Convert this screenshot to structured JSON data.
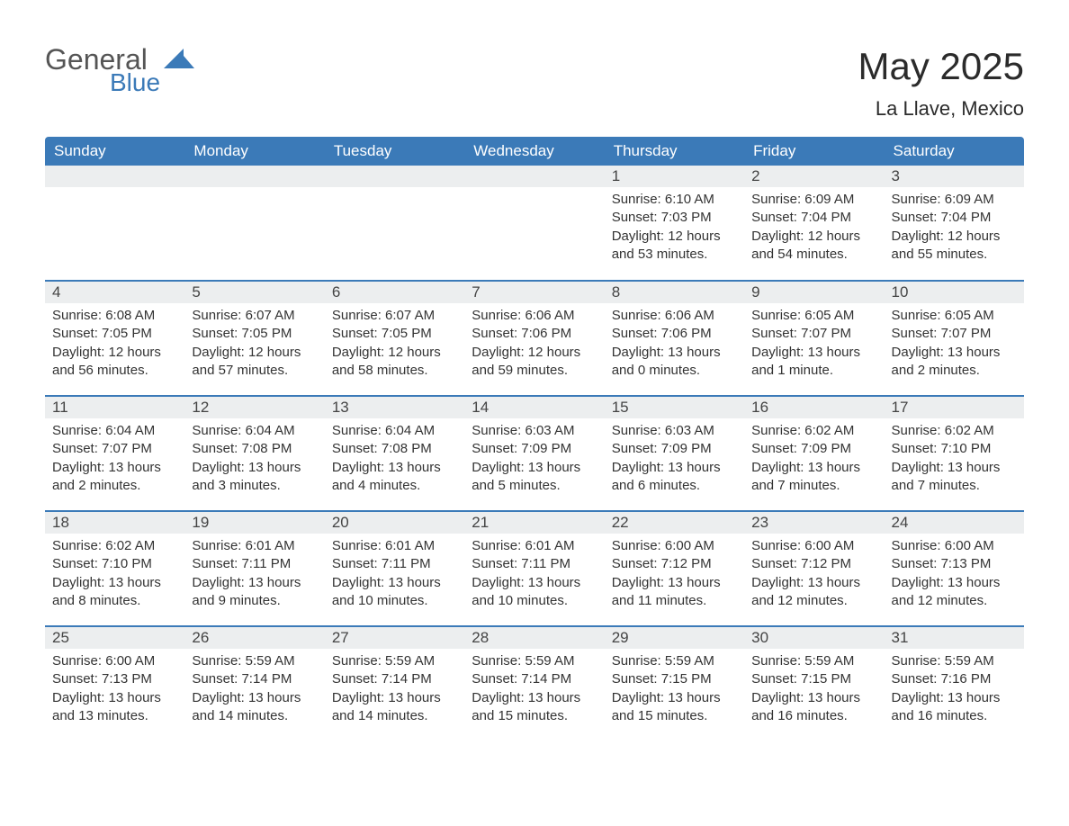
{
  "logo": {
    "text_primary": "General",
    "text_secondary": "Blue",
    "mark_color": "#3b7ab8",
    "primary_color": "#555555",
    "secondary_color": "#3b7ab8"
  },
  "title": "May 2025",
  "location": "La Llave, Mexico",
  "theme": {
    "header_bg": "#3b7ab8",
    "header_text": "#ffffff",
    "day_number_bg": "#eceeef",
    "divider_color": "#3b7ab8",
    "body_text_color": "#333333",
    "page_bg": "#ffffff"
  },
  "weekdays": [
    "Sunday",
    "Monday",
    "Tuesday",
    "Wednesday",
    "Thursday",
    "Friday",
    "Saturday"
  ],
  "weeks": [
    [
      null,
      null,
      null,
      null,
      {
        "day": "1",
        "sunrise": "6:10 AM",
        "sunset": "7:03 PM",
        "daylight": "12 hours and 53 minutes."
      },
      {
        "day": "2",
        "sunrise": "6:09 AM",
        "sunset": "7:04 PM",
        "daylight": "12 hours and 54 minutes."
      },
      {
        "day": "3",
        "sunrise": "6:09 AM",
        "sunset": "7:04 PM",
        "daylight": "12 hours and 55 minutes."
      }
    ],
    [
      {
        "day": "4",
        "sunrise": "6:08 AM",
        "sunset": "7:05 PM",
        "daylight": "12 hours and 56 minutes."
      },
      {
        "day": "5",
        "sunrise": "6:07 AM",
        "sunset": "7:05 PM",
        "daylight": "12 hours and 57 minutes."
      },
      {
        "day": "6",
        "sunrise": "6:07 AM",
        "sunset": "7:05 PM",
        "daylight": "12 hours and 58 minutes."
      },
      {
        "day": "7",
        "sunrise": "6:06 AM",
        "sunset": "7:06 PM",
        "daylight": "12 hours and 59 minutes."
      },
      {
        "day": "8",
        "sunrise": "6:06 AM",
        "sunset": "7:06 PM",
        "daylight": "13 hours and 0 minutes."
      },
      {
        "day": "9",
        "sunrise": "6:05 AM",
        "sunset": "7:07 PM",
        "daylight": "13 hours and 1 minute."
      },
      {
        "day": "10",
        "sunrise": "6:05 AM",
        "sunset": "7:07 PM",
        "daylight": "13 hours and 2 minutes."
      }
    ],
    [
      {
        "day": "11",
        "sunrise": "6:04 AM",
        "sunset": "7:07 PM",
        "daylight": "13 hours and 2 minutes."
      },
      {
        "day": "12",
        "sunrise": "6:04 AM",
        "sunset": "7:08 PM",
        "daylight": "13 hours and 3 minutes."
      },
      {
        "day": "13",
        "sunrise": "6:04 AM",
        "sunset": "7:08 PM",
        "daylight": "13 hours and 4 minutes."
      },
      {
        "day": "14",
        "sunrise": "6:03 AM",
        "sunset": "7:09 PM",
        "daylight": "13 hours and 5 minutes."
      },
      {
        "day": "15",
        "sunrise": "6:03 AM",
        "sunset": "7:09 PM",
        "daylight": "13 hours and 6 minutes."
      },
      {
        "day": "16",
        "sunrise": "6:02 AM",
        "sunset": "7:09 PM",
        "daylight": "13 hours and 7 minutes."
      },
      {
        "day": "17",
        "sunrise": "6:02 AM",
        "sunset": "7:10 PM",
        "daylight": "13 hours and 7 minutes."
      }
    ],
    [
      {
        "day": "18",
        "sunrise": "6:02 AM",
        "sunset": "7:10 PM",
        "daylight": "13 hours and 8 minutes."
      },
      {
        "day": "19",
        "sunrise": "6:01 AM",
        "sunset": "7:11 PM",
        "daylight": "13 hours and 9 minutes."
      },
      {
        "day": "20",
        "sunrise": "6:01 AM",
        "sunset": "7:11 PM",
        "daylight": "13 hours and 10 minutes."
      },
      {
        "day": "21",
        "sunrise": "6:01 AM",
        "sunset": "7:11 PM",
        "daylight": "13 hours and 10 minutes."
      },
      {
        "day": "22",
        "sunrise": "6:00 AM",
        "sunset": "7:12 PM",
        "daylight": "13 hours and 11 minutes."
      },
      {
        "day": "23",
        "sunrise": "6:00 AM",
        "sunset": "7:12 PM",
        "daylight": "13 hours and 12 minutes."
      },
      {
        "day": "24",
        "sunrise": "6:00 AM",
        "sunset": "7:13 PM",
        "daylight": "13 hours and 12 minutes."
      }
    ],
    [
      {
        "day": "25",
        "sunrise": "6:00 AM",
        "sunset": "7:13 PM",
        "daylight": "13 hours and 13 minutes."
      },
      {
        "day": "26",
        "sunrise": "5:59 AM",
        "sunset": "7:14 PM",
        "daylight": "13 hours and 14 minutes."
      },
      {
        "day": "27",
        "sunrise": "5:59 AM",
        "sunset": "7:14 PM",
        "daylight": "13 hours and 14 minutes."
      },
      {
        "day": "28",
        "sunrise": "5:59 AM",
        "sunset": "7:14 PM",
        "daylight": "13 hours and 15 minutes."
      },
      {
        "day": "29",
        "sunrise": "5:59 AM",
        "sunset": "7:15 PM",
        "daylight": "13 hours and 15 minutes."
      },
      {
        "day": "30",
        "sunrise": "5:59 AM",
        "sunset": "7:15 PM",
        "daylight": "13 hours and 16 minutes."
      },
      {
        "day": "31",
        "sunrise": "5:59 AM",
        "sunset": "7:16 PM",
        "daylight": "13 hours and 16 minutes."
      }
    ]
  ],
  "labels": {
    "sunrise": "Sunrise: ",
    "sunset": "Sunset: ",
    "daylight": "Daylight: "
  }
}
